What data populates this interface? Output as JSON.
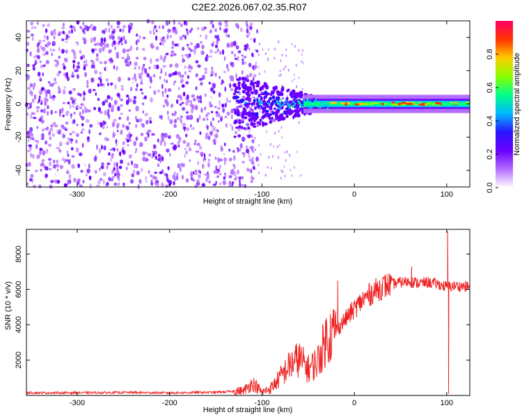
{
  "title": "C2E2.2026.067.02.35.R07",
  "chart_data": [
    {
      "type": "heatmap",
      "name": "spectrogram",
      "xlabel": "Height of straight line (km)",
      "ylabel": "Frequency (Hz)",
      "xlim": [
        -355,
        125
      ],
      "ylim": [
        -50,
        50
      ],
      "xticks": [
        -300,
        -200,
        -100,
        0,
        100
      ],
      "yticks": [
        -40,
        -20,
        0,
        20,
        40
      ],
      "colorbar": {
        "label": "Normalized spectral amplitude",
        "range": [
          0.0,
          1.0
        ],
        "ticks": [
          0.0,
          0.2,
          0.4,
          0.6,
          0.8
        ],
        "tick_labels": [
          "0.0",
          "0.2",
          "0.4",
          "0.6",
          "0.8"
        ],
        "colormap": [
          "#ffffff",
          "#b46cff",
          "#6a00ff",
          "#2a14ff",
          "#00b8ff",
          "#00ff88",
          "#88ff00",
          "#ffcc00",
          "#ff3300",
          "#ff0066"
        ]
      },
      "noise_region_km": [
        -355,
        -115
      ],
      "signal_track": {
        "frequency_hz": 0,
        "start_km": -130,
        "strong_from_km": -30,
        "end_km": 125
      }
    },
    {
      "type": "line",
      "name": "snr",
      "xlabel": "Height of straight line (km)",
      "ylabel": "SNR (10 * v/v)",
      "xlim": [
        -355,
        125
      ],
      "ylim": [
        0,
        9400
      ],
      "xticks": [
        -300,
        -200,
        -100,
        0,
        100
      ],
      "yticks": [
        2000,
        4000,
        6000,
        8000
      ],
      "color": "#ee2222",
      "series": [
        {
          "name": "SNR",
          "x": [
            -355,
            -300,
            -250,
            -200,
            -150,
            -120,
            -110,
            -100,
            -90,
            -80,
            -70,
            -60,
            -50,
            -40,
            -30,
            -20,
            -10,
            0,
            10,
            20,
            30,
            40,
            50,
            60,
            70,
            80,
            90,
            100,
            110,
            125
          ],
          "values": [
            150,
            150,
            170,
            150,
            180,
            260,
            700,
            180,
            420,
            1050,
            1700,
            2100,
            1500,
            1900,
            3300,
            3700,
            4300,
            4900,
            5450,
            5850,
            6150,
            6300,
            6400,
            6450,
            6350,
            6400,
            6300,
            6150,
            6200,
            6150
          ]
        }
      ],
      "spikes": [
        {
          "x": -18,
          "value": 6500
        },
        {
          "x": 62,
          "value": 7300
        },
        {
          "x": 101,
          "value": 9300
        },
        {
          "x": 102,
          "value": 100
        }
      ]
    }
  ]
}
